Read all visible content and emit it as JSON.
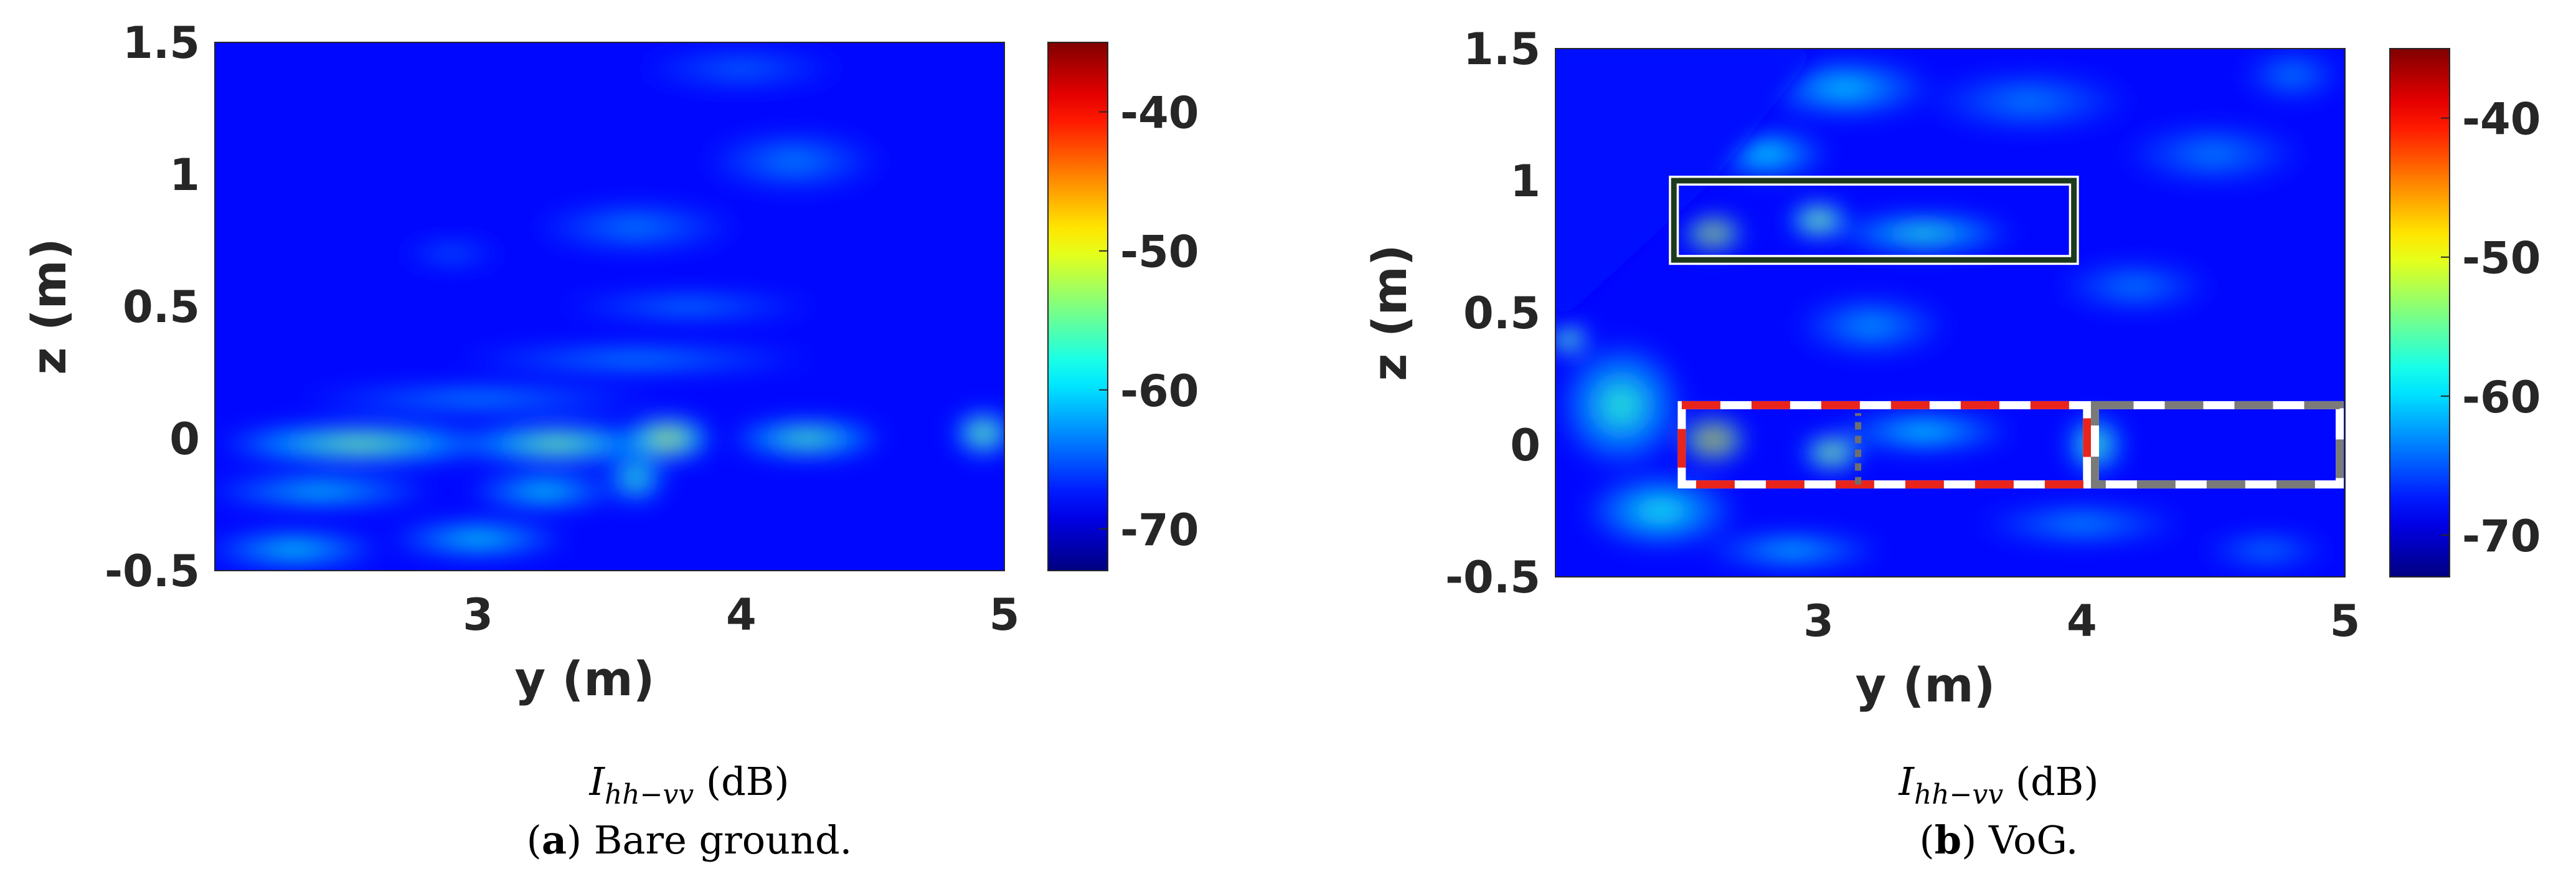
{
  "chart_data": [
    {
      "type": "heatmap",
      "panel_label": "a",
      "caption_rest": " Bare ground.",
      "quantity_symbol": "I",
      "quantity_subscript": "hh−vv",
      "quantity_unit": " (dB)",
      "xlabel": "y (m)",
      "ylabel": "z (m)",
      "xlim": [
        2.0,
        5.0
      ],
      "ylim": [
        -0.5,
        1.5
      ],
      "xticks": [
        3,
        4,
        5
      ],
      "yticks": [
        -0.5,
        0,
        0.5,
        1,
        1.5
      ],
      "ytick_labels": [
        "-0.5",
        "0",
        "0.5",
        "1",
        "1.5"
      ],
      "colorbar": {
        "range": [
          -73,
          -35
        ],
        "ticks": [
          -40,
          -50,
          -60,
          -70
        ],
        "tick_labels": [
          "-40",
          "-50",
          "-60",
          "-70"
        ],
        "colormap": "jet"
      },
      "background_db": -68,
      "blobs": [
        {
          "y": 3.72,
          "z": 0.0,
          "sy": 0.18,
          "sz": 0.09,
          "db": -48
        },
        {
          "y": 2.55,
          "z": -0.02,
          "sy": 0.55,
          "sz": 0.08,
          "db": -53
        },
        {
          "y": 3.3,
          "z": -0.02,
          "sy": 0.4,
          "sz": 0.08,
          "db": -53
        },
        {
          "y": 4.25,
          "z": 0.0,
          "sy": 0.3,
          "sz": 0.08,
          "db": -55
        },
        {
          "y": 4.92,
          "z": 0.02,
          "sy": 0.12,
          "sz": 0.09,
          "db": -52
        },
        {
          "y": 2.4,
          "z": -0.2,
          "sy": 0.45,
          "sz": 0.06,
          "db": -58
        },
        {
          "y": 3.25,
          "z": -0.2,
          "sy": 0.3,
          "sz": 0.07,
          "db": -58
        },
        {
          "y": 2.3,
          "z": -0.42,
          "sy": 0.35,
          "sz": 0.07,
          "db": -58
        },
        {
          "y": 3.0,
          "z": -0.38,
          "sy": 0.35,
          "sz": 0.07,
          "db": -58
        },
        {
          "y": 3.6,
          "z": -0.15,
          "sy": 0.12,
          "sz": 0.1,
          "db": -56
        },
        {
          "y": 3.0,
          "z": 0.15,
          "sy": 0.7,
          "sz": 0.05,
          "db": -61
        },
        {
          "y": 3.6,
          "z": 0.3,
          "sy": 0.7,
          "sz": 0.05,
          "db": -61
        },
        {
          "y": 3.8,
          "z": 0.5,
          "sy": 0.5,
          "sz": 0.05,
          "db": -62
        },
        {
          "y": 3.6,
          "z": 0.8,
          "sy": 0.4,
          "sz": 0.1,
          "db": -63
        },
        {
          "y": 4.2,
          "z": 1.05,
          "sy": 0.35,
          "sz": 0.12,
          "db": -63
        },
        {
          "y": 4.0,
          "z": 1.4,
          "sy": 0.4,
          "sz": 0.08,
          "db": -64
        },
        {
          "y": 2.9,
          "z": 0.7,
          "sy": 0.2,
          "sz": 0.05,
          "db": -64
        }
      ]
    },
    {
      "type": "heatmap",
      "panel_label": "b",
      "caption_rest": " VoG.",
      "quantity_symbol": "I",
      "quantity_subscript": "hh−vv",
      "quantity_unit": " (dB)",
      "xlabel": "y (m)",
      "ylabel": "z (m)",
      "xlim": [
        2.0,
        5.0
      ],
      "ylim": [
        -0.5,
        1.5
      ],
      "xticks": [
        3,
        4,
        5
      ],
      "yticks": [
        -0.5,
        0,
        0.5,
        1,
        1.5
      ],
      "ytick_labels": [
        "-0.5",
        "0",
        "0.5",
        "1",
        "1.5"
      ],
      "colorbar": {
        "range": [
          -73,
          -35
        ],
        "ticks": [
          -40,
          -50,
          -60,
          -70
        ],
        "tick_labels": [
          "-40",
          "-50",
          "-60",
          "-70"
        ],
        "colormap": "jet"
      },
      "background_db": -68,
      "mask_upper_left": {
        "points": [
          [
            2.0,
            0.45
          ],
          [
            2.6,
            1.0
          ],
          [
            3.0,
            1.5
          ]
        ]
      },
      "blobs": [
        {
          "y": 2.6,
          "z": 0.8,
          "sy": 0.12,
          "sz": 0.07,
          "db": -44
        },
        {
          "y": 3.0,
          "z": 0.85,
          "sy": 0.12,
          "sz": 0.07,
          "db": -49
        },
        {
          "y": 3.4,
          "z": 0.8,
          "sy": 0.35,
          "sz": 0.08,
          "db": -57
        },
        {
          "y": 2.6,
          "z": 0.02,
          "sy": 0.13,
          "sz": 0.09,
          "db": -42
        },
        {
          "y": 3.05,
          "z": -0.03,
          "sy": 0.12,
          "sz": 0.07,
          "db": -48
        },
        {
          "y": 2.05,
          "z": 0.4,
          "sy": 0.08,
          "sz": 0.06,
          "db": -50
        },
        {
          "y": 2.25,
          "z": 0.15,
          "sy": 0.25,
          "sz": 0.25,
          "db": -57
        },
        {
          "y": 2.4,
          "z": -0.25,
          "sy": 0.3,
          "sz": 0.15,
          "db": -58
        },
        {
          "y": 3.4,
          "z": 0.05,
          "sy": 0.35,
          "sz": 0.08,
          "db": -59
        },
        {
          "y": 4.05,
          "z": 0.0,
          "sy": 0.12,
          "sz": 0.12,
          "db": -55
        },
        {
          "y": 4.0,
          "z": -0.3,
          "sy": 0.4,
          "sz": 0.08,
          "db": -62
        },
        {
          "y": 3.1,
          "z": 1.35,
          "sy": 0.35,
          "sz": 0.12,
          "db": -60
        },
        {
          "y": 2.8,
          "z": 1.1,
          "sy": 0.25,
          "sz": 0.1,
          "db": -59
        },
        {
          "y": 3.8,
          "z": 1.3,
          "sy": 0.4,
          "sz": 0.12,
          "db": -63
        },
        {
          "y": 4.5,
          "z": 1.1,
          "sy": 0.35,
          "sz": 0.12,
          "db": -63
        },
        {
          "y": 4.8,
          "z": 1.4,
          "sy": 0.2,
          "sz": 0.1,
          "db": -63
        },
        {
          "y": 3.2,
          "z": 0.45,
          "sy": 0.3,
          "sz": 0.12,
          "db": -62
        },
        {
          "y": 4.2,
          "z": 0.6,
          "sy": 0.3,
          "sz": 0.1,
          "db": -63
        },
        {
          "y": 2.9,
          "z": -0.4,
          "sy": 0.35,
          "sz": 0.07,
          "db": -60
        },
        {
          "y": 4.7,
          "z": -0.4,
          "sy": 0.25,
          "sz": 0.07,
          "db": -63
        }
      ],
      "annotations": [
        {
          "kind": "solid-box",
          "y0": 2.45,
          "y1": 3.97,
          "z0": 0.7,
          "z1": 1.0
        },
        {
          "kind": "dashed-red-box",
          "y0": 2.48,
          "y1": 4.02,
          "z0": -0.15,
          "z1": 0.15
        },
        {
          "kind": "dashed-gray-box",
          "y0": 4.05,
          "y1": 4.98,
          "z0": -0.15,
          "z1": 0.15
        },
        {
          "kind": "dotted-gray-line",
          "y0": 3.15,
          "y1": 3.15,
          "z0": -0.15,
          "z1": 0.12
        }
      ]
    }
  ]
}
